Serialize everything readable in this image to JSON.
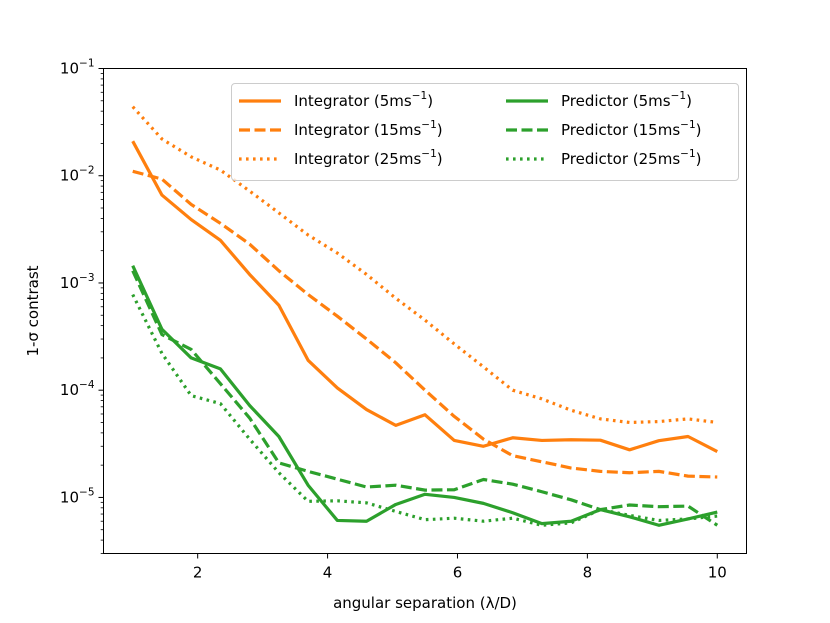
{
  "chart_data": {
    "type": "line",
    "title": "",
    "xlabel": "angular separation (λ/D)",
    "ylabel": "1-σ contrast",
    "xscale": "linear",
    "yscale": "log",
    "xlim": [
      0.55,
      10.45
    ],
    "ylim": [
      3e-06,
      0.1
    ],
    "xticks": [
      2,
      4,
      6,
      8,
      10
    ],
    "xtick_labels": [
      "2",
      "4",
      "6",
      "8",
      "10"
    ],
    "yticks": [
      1e-05,
      0.0001,
      0.001,
      0.01,
      0.1
    ],
    "ytick_labels": [
      {
        "base": "10",
        "exp": "−5"
      },
      {
        "base": "10",
        "exp": "−4"
      },
      {
        "base": "10",
        "exp": "−3"
      },
      {
        "base": "10",
        "exp": "−2"
      },
      {
        "base": "10",
        "exp": "−1"
      }
    ],
    "legend_position": "top-right",
    "x": [
      1.0,
      1.45,
      1.9,
      2.35,
      2.8,
      3.25,
      3.7,
      4.15,
      4.6,
      5.05,
      5.5,
      5.95,
      6.4,
      6.85,
      7.3,
      7.75,
      8.2,
      8.65,
      9.1,
      9.55,
      10.0
    ],
    "series": [
      {
        "name": "Integrator (5ms",
        "unit_exp": "−1",
        "label_suffix": ")",
        "color": "#ff7f0e",
        "style": "solid",
        "values": [
          0.021,
          0.0066,
          0.0039,
          0.0025,
          0.0012,
          0.00062,
          0.00019,
          0.000105,
          6.6e-05,
          4.7e-05,
          5.9e-05,
          3.4e-05,
          3e-05,
          3.6e-05,
          3.4e-05,
          3.45e-05,
          3.42e-05,
          2.78e-05,
          3.38e-05,
          3.7e-05,
          2.68e-05
        ]
      },
      {
        "name": "Integrator (15ms",
        "unit_exp": "−1",
        "label_suffix": ")",
        "color": "#ff7f0e",
        "style": "dashed",
        "values": [
          0.011,
          0.0093,
          0.0054,
          0.0036,
          0.0023,
          0.0013,
          0.00078,
          0.00049,
          0.0003,
          0.00018,
          0.0001,
          5.7e-05,
          3.5e-05,
          2.45e-05,
          2.15e-05,
          1.88e-05,
          1.75e-05,
          1.7e-05,
          1.75e-05,
          1.58e-05,
          1.55e-05
        ]
      },
      {
        "name": "Integrator (25ms",
        "unit_exp": "−1",
        "label_suffix": ")",
        "color": "#ff7f0e",
        "style": "dotted",
        "values": [
          0.044,
          0.022,
          0.015,
          0.0113,
          0.0072,
          0.0045,
          0.0028,
          0.0019,
          0.0012,
          0.00072,
          0.00045,
          0.00027,
          0.000165,
          0.0001,
          8.3e-05,
          6.5e-05,
          5.4e-05,
          5e-05,
          5.1e-05,
          5.4e-05,
          5e-05
        ]
      },
      {
        "name": "Predictor (5ms",
        "unit_exp": "−1",
        "label_suffix": ")",
        "color": "#2ca02c",
        "style": "solid",
        "values": [
          0.00145,
          0.00037,
          0.0002,
          0.000158,
          7.2e-05,
          3.7e-05,
          1.3e-05,
          6.1e-06,
          6e-06,
          8.6e-06,
          1.07e-05,
          1e-05,
          8.8e-06,
          7.2e-06,
          5.7e-06,
          6e-06,
          7.7e-06,
          6.6e-06,
          5.5e-06,
          6.3e-06,
          7.3e-06
        ]
      },
      {
        "name": "Predictor (15ms",
        "unit_exp": "−1",
        "label_suffix": ")",
        "color": "#2ca02c",
        "style": "dashed",
        "values": [
          0.0013,
          0.00033,
          0.00024,
          0.000115,
          5.5e-05,
          2.1e-05,
          1.75e-05,
          1.48e-05,
          1.25e-05,
          1.3e-05,
          1.17e-05,
          1.18e-05,
          1.47e-05,
          1.33e-05,
          1.13e-05,
          9.5e-06,
          7.7e-06,
          8.5e-06,
          8.2e-06,
          8.3e-06,
          5.5e-06
        ]
      },
      {
        "name": "Predictor (25ms",
        "unit_exp": "−1",
        "label_suffix": ")",
        "color": "#2ca02c",
        "style": "dotted",
        "values": [
          0.00078,
          0.00022,
          8.9e-05,
          7.5e-05,
          3.5e-05,
          1.7e-05,
          9.2e-06,
          9.3e-06,
          8.9e-06,
          7.4e-06,
          6.2e-06,
          6.4e-06,
          6e-06,
          6.4e-06,
          5.5e-06,
          5.8e-06,
          7.7e-06,
          6.8e-06,
          6.1e-06,
          6.3e-06,
          6.7e-06
        ]
      }
    ]
  }
}
